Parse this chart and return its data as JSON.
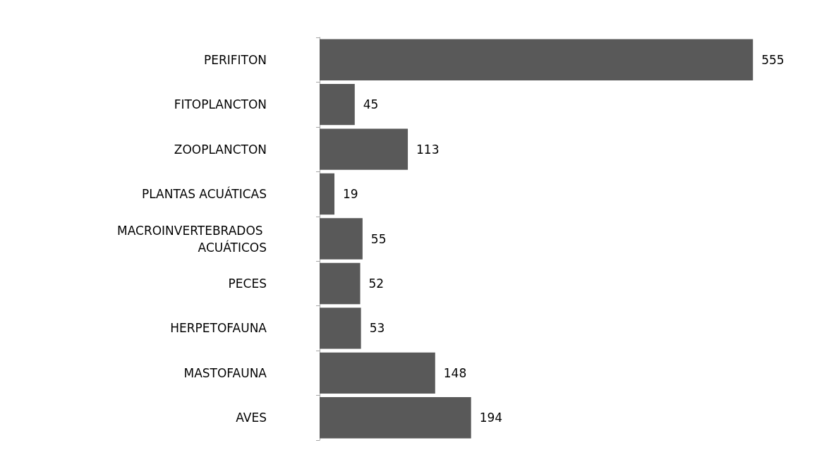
{
  "chart_data": {
    "type": "bar",
    "orientation": "horizontal",
    "categories": [
      "PERIFITON",
      "FITOPLANCTON",
      "ZOOPLANCTON",
      "PLANTAS ACUÁTICAS",
      "MACROINVERTEBRADOS ACUÁTICOS",
      "PECES",
      "HERPETOFAUNA",
      "MASTOFAUNA",
      "AVES"
    ],
    "values": [
      555,
      45,
      113,
      19,
      55,
      52,
      53,
      148,
      194
    ],
    "color": "#595959",
    "data_labels": true
  }
}
